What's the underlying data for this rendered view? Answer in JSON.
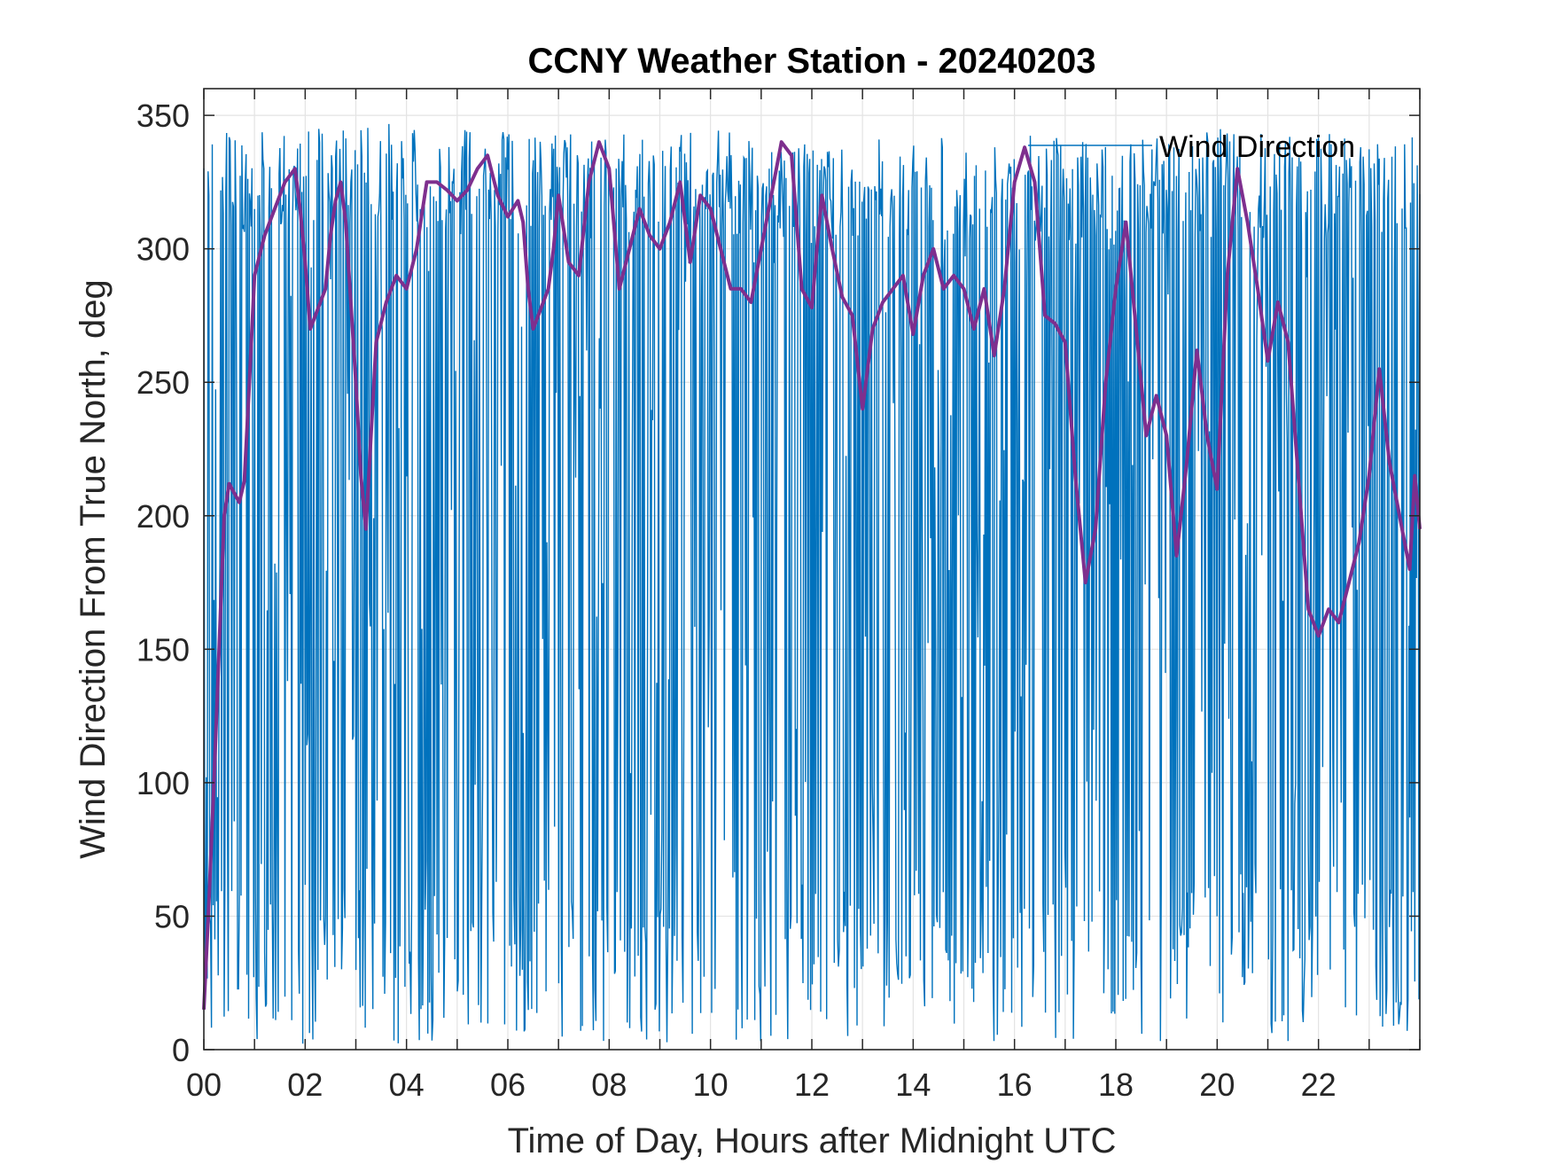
{
  "chart_data": {
    "type": "line",
    "title": "CCNY Weather Station - 20240203",
    "xlabel": "Time of Day, Hours after Midnight UTC",
    "ylabel": "Wind Direction From True North, deg",
    "xlim": [
      0,
      24
    ],
    "ylim": [
      0,
      360
    ],
    "xticks": [
      0,
      2,
      4,
      6,
      8,
      10,
      12,
      14,
      16,
      18,
      20,
      22
    ],
    "xtick_labels": [
      "00",
      "02",
      "04",
      "06",
      "08",
      "10",
      "12",
      "14",
      "16",
      "18",
      "20",
      "22"
    ],
    "yticks": [
      0,
      50,
      100,
      150,
      200,
      250,
      300,
      350
    ],
    "ytick_labels": [
      "0",
      "50",
      "100",
      "150",
      "200",
      "250",
      "300",
      "350"
    ],
    "grid": true,
    "legend_position": "top-right",
    "legend": [
      "Wind Direction"
    ],
    "series": [
      {
        "name": "Wind Direction",
        "color": "#0072BD",
        "style": "dense noisy raw samples oscillating between ~0 and ~355 deg",
        "band_top": [
          [
            0,
            345
          ],
          [
            2,
            345
          ],
          [
            4,
            348
          ],
          [
            6,
            345
          ],
          [
            8,
            343
          ],
          [
            10,
            345
          ],
          [
            12,
            342
          ],
          [
            14,
            343
          ],
          [
            16,
            343
          ],
          [
            18,
            340
          ],
          [
            20,
            345
          ],
          [
            22,
            343
          ],
          [
            24,
            345
          ]
        ],
        "band_bottom": [
          [
            0,
            5
          ],
          [
            2,
            2
          ],
          [
            4,
            2
          ],
          [
            6,
            5
          ],
          [
            8,
            2
          ],
          [
            10,
            3
          ],
          [
            12,
            3
          ],
          [
            14,
            2
          ],
          [
            16,
            3
          ],
          [
            18,
            3
          ],
          [
            20,
            3
          ],
          [
            22,
            3
          ],
          [
            24,
            5
          ]
        ]
      },
      {
        "color": "#7E2F8E",
        "values": [
          [
            0.0,
            15
          ],
          [
            0.1,
            55
          ],
          [
            0.2,
            100
          ],
          [
            0.3,
            150
          ],
          [
            0.4,
            200
          ],
          [
            0.5,
            212
          ],
          [
            0.7,
            205
          ],
          [
            0.8,
            213
          ],
          [
            0.9,
            250
          ],
          [
            1.0,
            290
          ],
          [
            1.2,
            305
          ],
          [
            1.4,
            315
          ],
          [
            1.6,
            325
          ],
          [
            1.8,
            330
          ],
          [
            1.9,
            315
          ],
          [
            2.0,
            295
          ],
          [
            2.1,
            270
          ],
          [
            2.2,
            275
          ],
          [
            2.4,
            285
          ],
          [
            2.5,
            305
          ],
          [
            2.6,
            318
          ],
          [
            2.7,
            325
          ],
          [
            2.8,
            310
          ],
          [
            3.0,
            250
          ],
          [
            3.1,
            215
          ],
          [
            3.2,
            195
          ],
          [
            3.3,
            230
          ],
          [
            3.4,
            265
          ],
          [
            3.6,
            280
          ],
          [
            3.8,
            290
          ],
          [
            4.0,
            285
          ],
          [
            4.2,
            300
          ],
          [
            4.4,
            325
          ],
          [
            4.6,
            325
          ],
          [
            4.8,
            322
          ],
          [
            5.0,
            318
          ],
          [
            5.2,
            322
          ],
          [
            5.4,
            330
          ],
          [
            5.6,
            335
          ],
          [
            5.8,
            320
          ],
          [
            6.0,
            312
          ],
          [
            6.2,
            318
          ],
          [
            6.3,
            310
          ],
          [
            6.4,
            285
          ],
          [
            6.5,
            270
          ],
          [
            6.6,
            275
          ],
          [
            6.8,
            285
          ],
          [
            6.9,
            300
          ],
          [
            7.0,
            320
          ],
          [
            7.2,
            295
          ],
          [
            7.4,
            290
          ],
          [
            7.6,
            325
          ],
          [
            7.8,
            340
          ],
          [
            8.0,
            330
          ],
          [
            8.2,
            285
          ],
          [
            8.4,
            300
          ],
          [
            8.6,
            315
          ],
          [
            8.8,
            305
          ],
          [
            9.0,
            300
          ],
          [
            9.2,
            310
          ],
          [
            9.4,
            325
          ],
          [
            9.6,
            295
          ],
          [
            9.8,
            320
          ],
          [
            10.0,
            315
          ],
          [
            10.2,
            300
          ],
          [
            10.4,
            285
          ],
          [
            10.6,
            285
          ],
          [
            10.8,
            280
          ],
          [
            11.0,
            300
          ],
          [
            11.2,
            320
          ],
          [
            11.4,
            340
          ],
          [
            11.6,
            335
          ],
          [
            11.8,
            285
          ],
          [
            12.0,
            278
          ],
          [
            12.1,
            300
          ],
          [
            12.2,
            320
          ],
          [
            12.4,
            300
          ],
          [
            12.6,
            282
          ],
          [
            12.8,
            275
          ],
          [
            13.0,
            240
          ],
          [
            13.2,
            270
          ],
          [
            13.4,
            280
          ],
          [
            13.6,
            285
          ],
          [
            13.8,
            290
          ],
          [
            14.0,
            268
          ],
          [
            14.2,
            290
          ],
          [
            14.4,
            300
          ],
          [
            14.6,
            285
          ],
          [
            14.8,
            290
          ],
          [
            15.0,
            285
          ],
          [
            15.2,
            270
          ],
          [
            15.4,
            285
          ],
          [
            15.6,
            260
          ],
          [
            15.8,
            285
          ],
          [
            16.0,
            325
          ],
          [
            16.2,
            338
          ],
          [
            16.4,
            325
          ],
          [
            16.6,
            275
          ],
          [
            16.8,
            272
          ],
          [
            17.0,
            265
          ],
          [
            17.2,
            215
          ],
          [
            17.4,
            175
          ],
          [
            17.6,
            195
          ],
          [
            17.8,
            250
          ],
          [
            18.0,
            285
          ],
          [
            18.2,
            310
          ],
          [
            18.4,
            270
          ],
          [
            18.6,
            230
          ],
          [
            18.8,
            245
          ],
          [
            19.0,
            230
          ],
          [
            19.2,
            185
          ],
          [
            19.4,
            220
          ],
          [
            19.6,
            262
          ],
          [
            19.8,
            230
          ],
          [
            20.0,
            210
          ],
          [
            20.2,
            290
          ],
          [
            20.4,
            330
          ],
          [
            20.6,
            310
          ],
          [
            20.8,
            285
          ],
          [
            21.0,
            258
          ],
          [
            21.2,
            280
          ],
          [
            21.4,
            265
          ],
          [
            21.6,
            215
          ],
          [
            21.8,
            165
          ],
          [
            22.0,
            155
          ],
          [
            22.2,
            165
          ],
          [
            22.4,
            160
          ],
          [
            22.6,
            175
          ],
          [
            22.8,
            190
          ],
          [
            23.0,
            215
          ],
          [
            23.2,
            255
          ],
          [
            23.4,
            220
          ],
          [
            23.6,
            200
          ],
          [
            23.8,
            180
          ],
          [
            23.9,
            215
          ],
          [
            24.0,
            195
          ]
        ]
      }
    ]
  }
}
